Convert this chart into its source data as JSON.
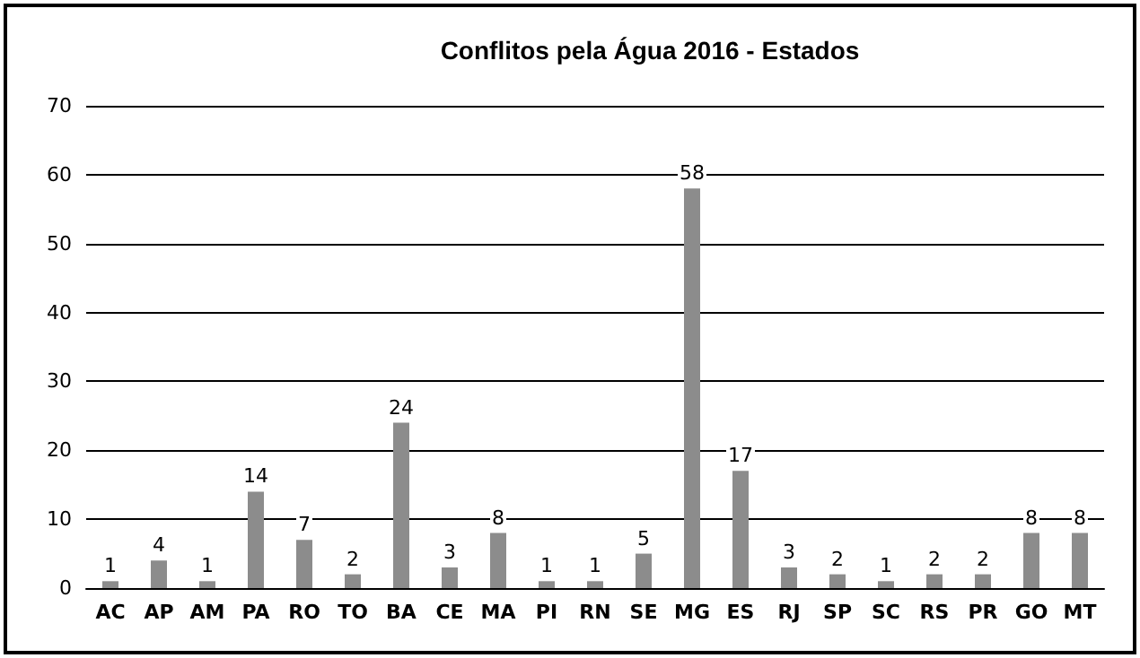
{
  "chart_data": {
    "type": "bar",
    "title": "Conflitos pela Água 2016 - Estados",
    "categories": [
      "AC",
      "AP",
      "AM",
      "PA",
      "RO",
      "TO",
      "BA",
      "CE",
      "MA",
      "PI",
      "RN",
      "SE",
      "MG",
      "ES",
      "RJ",
      "SP",
      "SC",
      "RS",
      "PR",
      "GO",
      "MT"
    ],
    "values": [
      1,
      4,
      1,
      14,
      7,
      2,
      24,
      3,
      8,
      1,
      1,
      5,
      58,
      17,
      3,
      2,
      1,
      2,
      2,
      8,
      8
    ],
    "color": "#8c8c8c",
    "ylim": [
      0,
      70
    ],
    "yticks": [
      0,
      10,
      20,
      30,
      40,
      50,
      60,
      70
    ],
    "grid": "y",
    "data_labels": true
  }
}
